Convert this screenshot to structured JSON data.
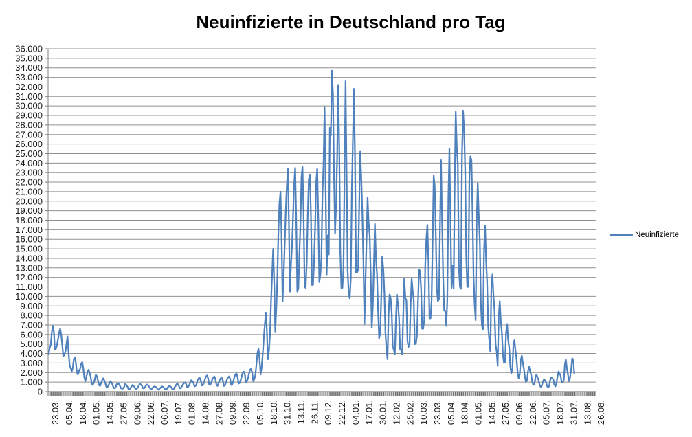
{
  "chart_data": {
    "type": "line",
    "title": "Neuinfizierte in Deutschland pro Tag",
    "xlabel": "",
    "ylabel": "",
    "grid": "horizontal-major",
    "legend_position": "right",
    "ylim": [
      0,
      36000
    ],
    "y_tick_step": 1000,
    "y_tick_labels": [
      "0",
      "1.000",
      "2.000",
      "3.000",
      "4.000",
      "5.000",
      "6.000",
      "7.000",
      "8.000",
      "9.000",
      "10.000",
      "11.000",
      "12.000",
      "13.000",
      "14.000",
      "15.000",
      "16.000",
      "17.000",
      "18.000",
      "19.000",
      "20.000",
      "21.000",
      "22.000",
      "23.000",
      "24.000",
      "25.000",
      "26.000",
      "27.000",
      "28.000",
      "29.000",
      "30.000",
      "31.000",
      "32.000",
      "33.000",
      "34.000",
      "35.000",
      "36.000"
    ],
    "axis_categories": 522,
    "x_label_interval": 13,
    "x_tick_labels": [
      "23.03.",
      "05.04.",
      "18.04.",
      "01.05.",
      "14.05.",
      "27.05.",
      "09.06.",
      "22.06.",
      "06.07.",
      "19.07.",
      "01.08.",
      "14.08.",
      "27.08.",
      "09.09.",
      "22.09.",
      "05.10.",
      "18.10.",
      "31.10.",
      "13.11.",
      "26.11.",
      "09.12.",
      "22.12.",
      "04.01.",
      "17.01.",
      "30.01.",
      "12.02.",
      "25.02.",
      "10.03.",
      "23.03.",
      "05.04.",
      "18.04.",
      "01.05.",
      "14.05.",
      "27.05.",
      "09.06.",
      "22.06.",
      "05.07.",
      "18.07.",
      "31.07.",
      "13.08.",
      "26.08."
    ],
    "colors": {
      "series": "#4F81BD",
      "gridline": "#909090",
      "axis": "#808080",
      "tick_comb": "#4D4D4D",
      "text": "#1A1A1A",
      "title": "#000000",
      "background": "#FFFFFF"
    },
    "series": [
      {
        "name": "Neuinfizierte",
        "color": "#4F81BD",
        "values": [
          3900,
          4600,
          4900,
          6200,
          6900,
          6300,
          4400,
          4500,
          4900,
          5500,
          6200,
          6600,
          6000,
          4900,
          3700,
          3900,
          4200,
          5000,
          5800,
          4100,
          2800,
          2500,
          2100,
          2500,
          3400,
          3600,
          3000,
          2000,
          1800,
          2200,
          2400,
          2900,
          3100,
          2500,
          1500,
          1100,
          1600,
          2000,
          2300,
          2000,
          1600,
          900,
          700,
          900,
          1300,
          1800,
          1600,
          1200,
          700,
          600,
          900,
          1200,
          1400,
          1200,
          900,
          500,
          450,
          650,
          900,
          1100,
          950,
          700,
          400,
          350,
          500,
          800,
          900,
          800,
          600,
          350,
          300,
          350,
          500,
          800,
          700,
          550,
          300,
          250,
          350,
          550,
          700,
          600,
          450,
          250,
          300,
          450,
          650,
          800,
          750,
          600,
          350,
          350,
          500,
          700,
          750,
          650,
          500,
          300,
          250,
          400,
          500,
          550,
          500,
          400,
          250,
          200,
          350,
          450,
          550,
          500,
          400,
          250,
          200,
          350,
          500,
          600,
          550,
          450,
          250,
          250,
          450,
          600,
          800,
          800,
          650,
          350,
          350,
          550,
          750,
          900,
          950,
          800,
          450,
          500,
          700,
          950,
          1200,
          1100,
          950,
          550,
          600,
          800,
          1200,
          1400,
          1450,
          1200,
          650,
          700,
          900,
          1300,
          1600,
          1700,
          1400,
          750,
          700,
          950,
          1300,
          1500,
          1600,
          1300,
          700,
          600,
          900,
          1200,
          1400,
          1450,
          1200,
          600,
          650,
          950,
          1300,
          1500,
          1600,
          1350,
          700,
          750,
          1100,
          1500,
          1800,
          1900,
          1600,
          850,
          900,
          1200,
          1600,
          2000,
          2100,
          1800,
          1000,
          1100,
          1400,
          1900,
          2300,
          2400,
          2000,
          1100,
          1300,
          1700,
          2800,
          4000,
          4500,
          3500,
          1800,
          2500,
          3800,
          5500,
          7000,
          8300,
          6400,
          3400,
          4300,
          6000,
          9500,
          12300,
          15000,
          11500,
          6300,
          8700,
          12000,
          16800,
          19800,
          21000,
          16500,
          9500,
          12100,
          15400,
          18900,
          21500,
          23400,
          17800,
          10500,
          13400,
          15300,
          18500,
          21800,
          23500,
          18000,
          10500,
          10800,
          14400,
          17600,
          22600,
          23600,
          18700,
          11000,
          10900,
          13600,
          18600,
          22300,
          22800,
          18600,
          11200,
          11200,
          13600,
          17300,
          22000,
          23400,
          18300,
          11500,
          12300,
          14100,
          20800,
          23700,
          29900,
          21400,
          12300,
          16400,
          14400,
          27700,
          26900,
          33700,
          31300,
          22800,
          16600,
          19500,
          24700,
          32200,
          25500,
          14500,
          10900,
          10900,
          12900,
          22500,
          32600,
          22900,
          12700,
          10300,
          9800,
          11900,
          21200,
          26400,
          31800,
          24700,
          12500,
          12500,
          12800,
          19600,
          25200,
          22400,
          18700,
          13900,
          7100,
          11400,
          15900,
          20400,
          17800,
          16400,
          12300,
          6700,
          9000,
          13200,
          17600,
          14000,
          12300,
          8600,
          5600,
          6100,
          9700,
          14200,
          12900,
          10500,
          6200,
          4500,
          3400,
          8100,
          10200,
          9800,
          8300,
          4700,
          4400,
          3900,
          7600,
          10200,
          9100,
          7700,
          4400,
          4400,
          3900,
          8000,
          11900,
          9900,
          9600,
          5300,
          4700,
          5000,
          9000,
          11900,
          10600,
          9600,
          5000,
          5000,
          5800,
          9100,
          12800,
          12700,
          10800,
          6600,
          6600,
          7500,
          13400,
          16000,
          17500,
          13700,
          7700,
          7700,
          9600,
          15800,
          22700,
          21600,
          16700,
          10800,
          9500,
          9700,
          17100,
          24300,
          18100,
          12200,
          8500,
          8500,
          6900,
          9700,
          20400,
          25500,
          18100,
          10900,
          13200,
          10800,
          21700,
          29400,
          25800,
          23800,
          13200,
          11000,
          10800,
          24900,
          29500,
          27500,
          23400,
          14300,
          11000,
          11000,
          22200,
          24700,
          24300,
          18900,
          12000,
          9200,
          7500,
          18000,
          21900,
          18500,
          15700,
          9200,
          6900,
          6500,
          14900,
          17400,
          13700,
          11300,
          6700,
          5400,
          4200,
          11000,
          12300,
          10100,
          8500,
          5000,
          4200,
          2700,
          7900,
          9500,
          7400,
          6200,
          3900,
          3000,
          3100,
          6200,
          7100,
          5400,
          4600,
          2700,
          1900,
          2400,
          4900,
          5400,
          4300,
          3400,
          2000,
          1400,
          1800,
          3300,
          3800,
          3000,
          2400,
          1500,
          1000,
          1200,
          2200,
          2600,
          2100,
          1700,
          1000,
          700,
          800,
          1500,
          1800,
          1500,
          1200,
          700,
          500,
          600,
          1000,
          1300,
          1200,
          1000,
          600,
          450,
          550,
          1200,
          1500,
          1400,
          1300,
          750,
          550,
          900,
          1550,
          2100,
          1900,
          1700,
          1000,
          950,
          1200,
          2800,
          3400,
          2400,
          1800,
          1100,
          1500,
          2300,
          3500,
          3300,
          1900
        ]
      }
    ]
  }
}
